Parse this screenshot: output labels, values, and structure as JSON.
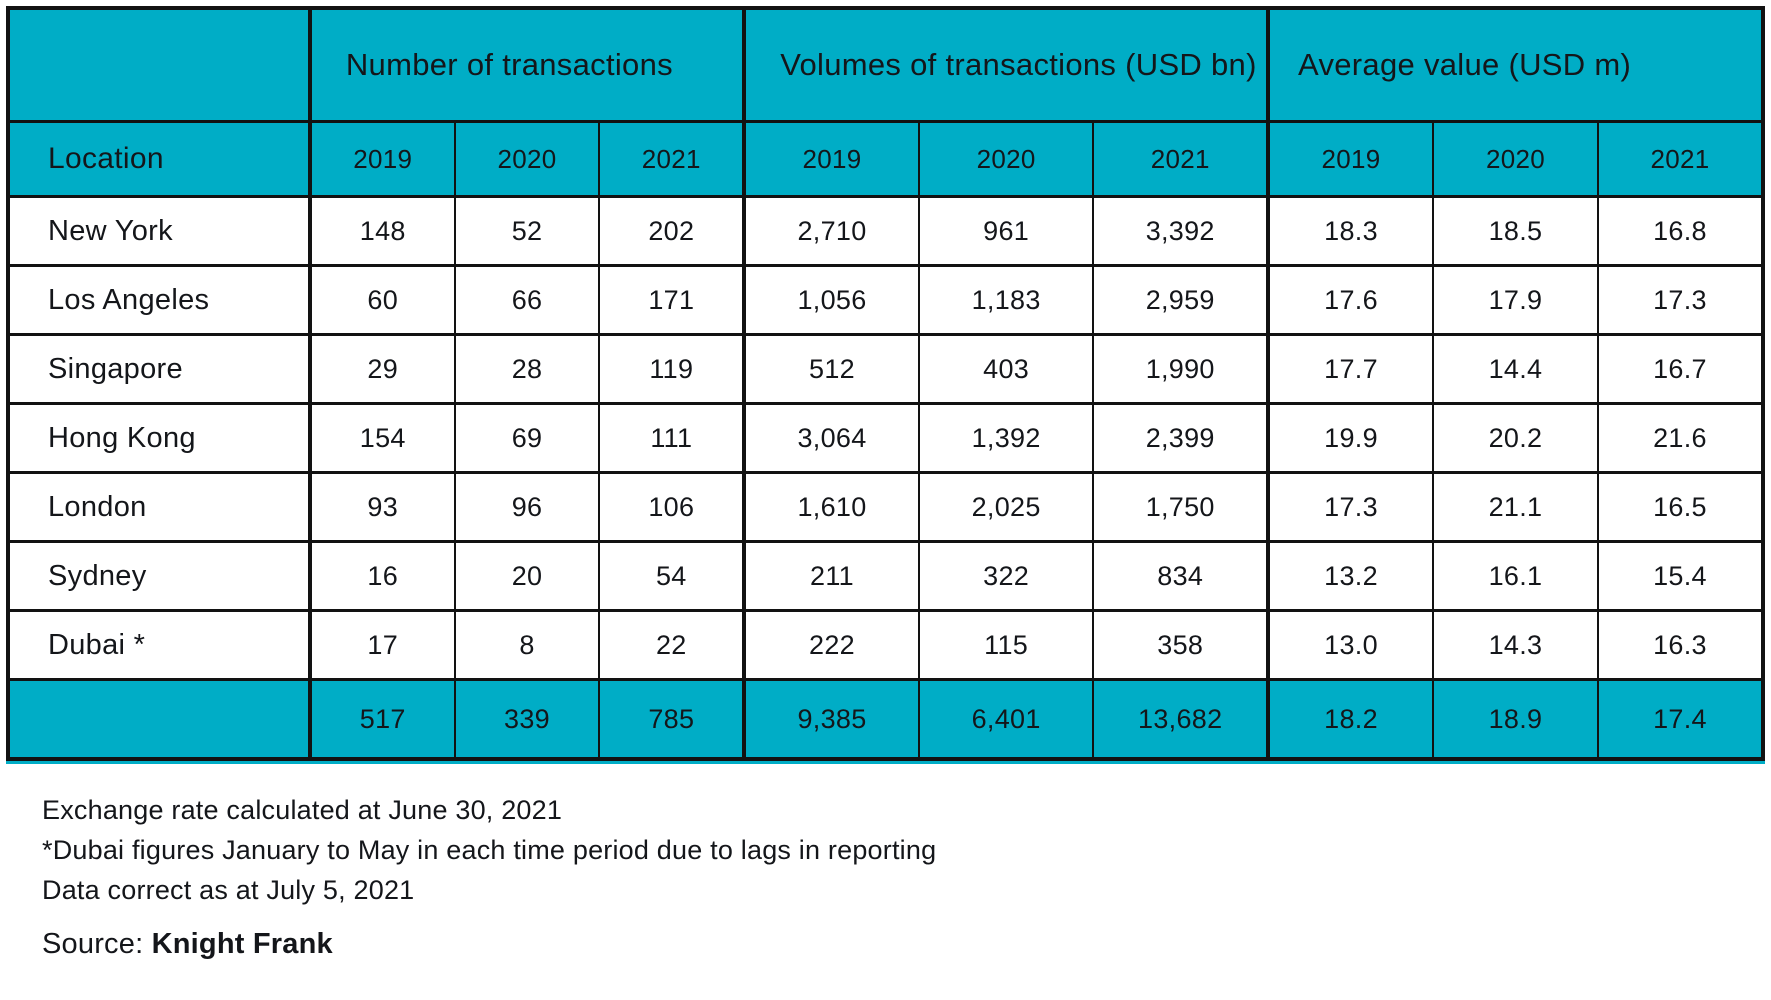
{
  "colors": {
    "teal": "#00adc6",
    "ink": "#14161a",
    "border": "#121212",
    "background": "#ffffff"
  },
  "table": {
    "location_header": "Location",
    "groups": [
      {
        "label": "Number of transactions",
        "years": [
          "2019",
          "2020",
          "2021"
        ]
      },
      {
        "label": "Volumes of transactions (USD bn)",
        "years": [
          "2019",
          "2020",
          "2021"
        ]
      },
      {
        "label": "Average value (USD m)",
        "years": [
          "2019",
          "2020",
          "2021"
        ]
      }
    ],
    "rows": [
      {
        "location": "New York",
        "number": [
          "148",
          "52",
          "202"
        ],
        "volume": [
          "2,710",
          "961",
          "3,392"
        ],
        "average": [
          "18.3",
          "18.5",
          "16.8"
        ]
      },
      {
        "location": "Los Angeles",
        "number": [
          "60",
          "66",
          "171"
        ],
        "volume": [
          "1,056",
          "1,183",
          "2,959"
        ],
        "average": [
          "17.6",
          "17.9",
          "17.3"
        ]
      },
      {
        "location": "Singapore",
        "number": [
          "29",
          "28",
          "119"
        ],
        "volume": [
          "512",
          "403",
          "1,990"
        ],
        "average": [
          "17.7",
          "14.4",
          "16.7"
        ]
      },
      {
        "location": "Hong Kong",
        "number": [
          "154",
          "69",
          "111"
        ],
        "volume": [
          "3,064",
          "1,392",
          "2,399"
        ],
        "average": [
          "19.9",
          "20.2",
          "21.6"
        ]
      },
      {
        "location": "London",
        "number": [
          "93",
          "96",
          "106"
        ],
        "volume": [
          "1,610",
          "2,025",
          "1,750"
        ],
        "average": [
          "17.3",
          "21.1",
          "16.5"
        ]
      },
      {
        "location": "Sydney",
        "number": [
          "16",
          "20",
          "54"
        ],
        "volume": [
          "211",
          "322",
          "834"
        ],
        "average": [
          "13.2",
          "16.1",
          "15.4"
        ]
      },
      {
        "location": "Dubai *",
        "number": [
          "17",
          "8",
          "22"
        ],
        "volume": [
          "222",
          "115",
          "358"
        ],
        "average": [
          "13.0",
          "14.3",
          "16.3"
        ]
      }
    ],
    "totals": {
      "location": "",
      "number": [
        "517",
        "339",
        "785"
      ],
      "volume": [
        "9,385",
        "6,401",
        "13,682"
      ],
      "average": [
        "18.2",
        "18.9",
        "17.4"
      ]
    }
  },
  "notes": [
    "Exchange rate calculated at June 30, 2021",
    "*Dubai figures January to May in each time period due to lags in reporting",
    "Data correct as at July 5, 2021"
  ],
  "source": {
    "label": "Source:",
    "name": "Knight Frank"
  },
  "chart_data": {
    "type": "table",
    "title": "",
    "row_header": "Location",
    "column_groups": [
      "Number of transactions",
      "Volumes of transactions (USD bn)",
      "Average value (USD m)"
    ],
    "years": [
      2019,
      2020,
      2021
    ],
    "rows": [
      {
        "location": "New York",
        "number_of_transactions": [
          148,
          52,
          202
        ],
        "volumes_usd_bn": [
          2710,
          961,
          3392
        ],
        "average_value_usd_m": [
          18.3,
          18.5,
          16.8
        ]
      },
      {
        "location": "Los Angeles",
        "number_of_transactions": [
          60,
          66,
          171
        ],
        "volumes_usd_bn": [
          1056,
          1183,
          2959
        ],
        "average_value_usd_m": [
          17.6,
          17.9,
          17.3
        ]
      },
      {
        "location": "Singapore",
        "number_of_transactions": [
          29,
          28,
          119
        ],
        "volumes_usd_bn": [
          512,
          403,
          1990
        ],
        "average_value_usd_m": [
          17.7,
          14.4,
          16.7
        ]
      },
      {
        "location": "Hong Kong",
        "number_of_transactions": [
          154,
          69,
          111
        ],
        "volumes_usd_bn": [
          3064,
          1392,
          2399
        ],
        "average_value_usd_m": [
          19.9,
          20.2,
          21.6
        ]
      },
      {
        "location": "London",
        "number_of_transactions": [
          93,
          96,
          106
        ],
        "volumes_usd_bn": [
          1610,
          2025,
          1750
        ],
        "average_value_usd_m": [
          17.3,
          21.1,
          16.5
        ]
      },
      {
        "location": "Sydney",
        "number_of_transactions": [
          16,
          20,
          54
        ],
        "volumes_usd_bn": [
          211,
          322,
          834
        ],
        "average_value_usd_m": [
          13.2,
          16.1,
          15.4
        ]
      },
      {
        "location": "Dubai *",
        "number_of_transactions": [
          17,
          8,
          22
        ],
        "volumes_usd_bn": [
          222,
          115,
          358
        ],
        "average_value_usd_m": [
          13.0,
          14.3,
          16.3
        ]
      }
    ],
    "totals": {
      "number_of_transactions": [
        517,
        339,
        785
      ],
      "volumes_usd_bn": [
        9385,
        6401,
        13682
      ],
      "average_value_usd_m": [
        18.2,
        18.9,
        17.4
      ]
    },
    "footnotes": [
      "Exchange rate calculated at June 30, 2021",
      "*Dubai figures January to May in each time period due to lags in reporting",
      "Data correct as at July 5, 2021"
    ],
    "source": "Knight Frank"
  }
}
